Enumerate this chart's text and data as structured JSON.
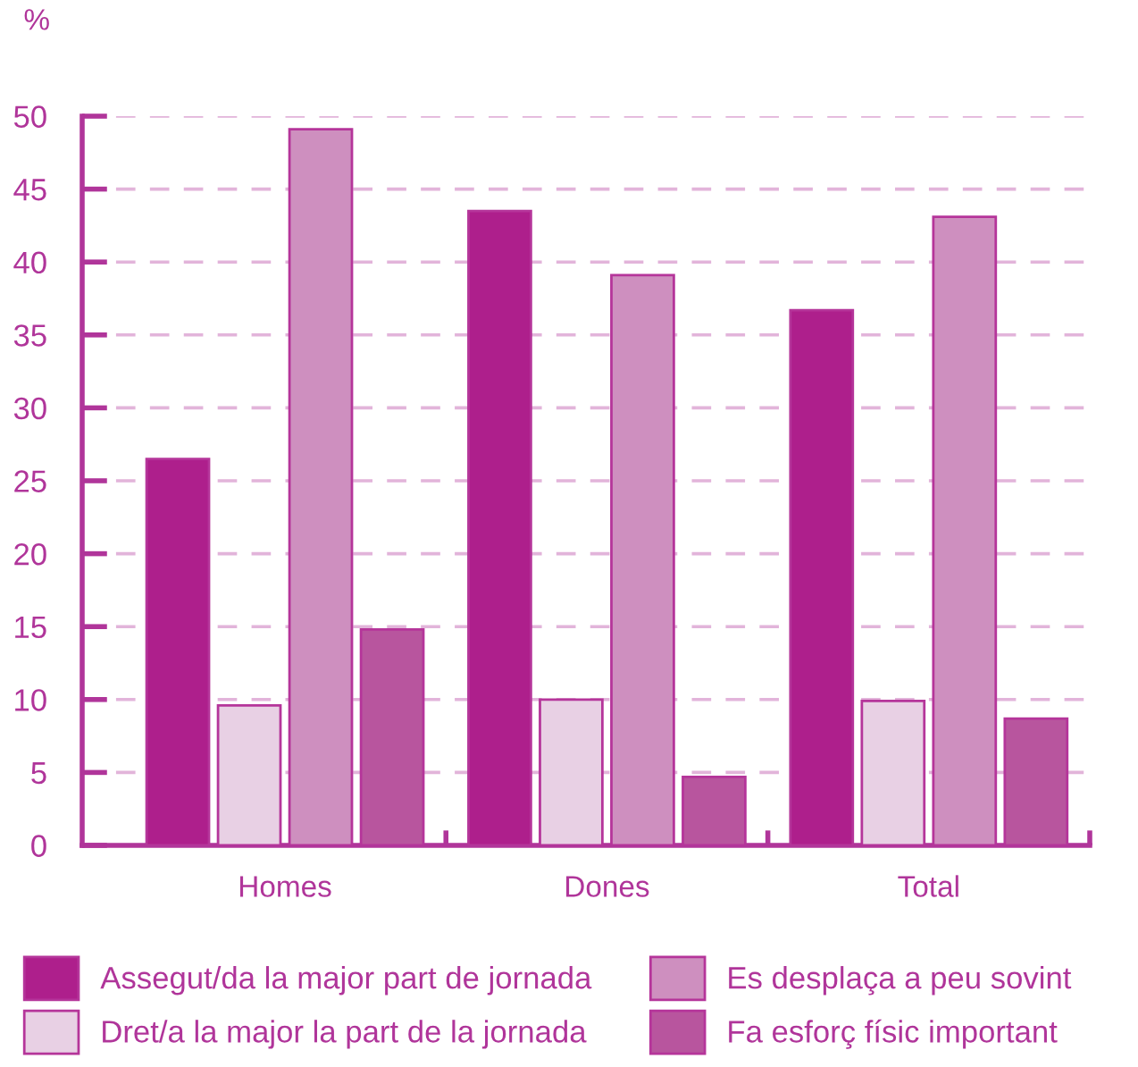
{
  "chart_data": {
    "type": "bar",
    "ylabel": "%",
    "categories": [
      "Homes",
      "Dones",
      "Total"
    ],
    "series": [
      {
        "name": "Assegut/da la major part de jornada",
        "color": "#ae1f8c",
        "values": [
          26.5,
          43.5,
          36.7
        ]
      },
      {
        "name": "Dret/a la major la part de la jornada",
        "color": "#e8d0e4",
        "values": [
          9.6,
          10.0,
          9.9
        ]
      },
      {
        "name": "Es desplaça a peu sovint",
        "color": "#ce8fbf",
        "values": [
          49.1,
          39.1,
          43.1
        ]
      },
      {
        "name": "Fa esforç físic important",
        "color": "#b8559e",
        "values": [
          14.8,
          4.7,
          8.7
        ]
      }
    ],
    "ylim": [
      0,
      50
    ],
    "yticks": [
      0,
      5,
      10,
      15,
      20,
      25,
      30,
      35,
      40,
      45,
      50
    ],
    "grid": "y",
    "legend": "bottom"
  }
}
